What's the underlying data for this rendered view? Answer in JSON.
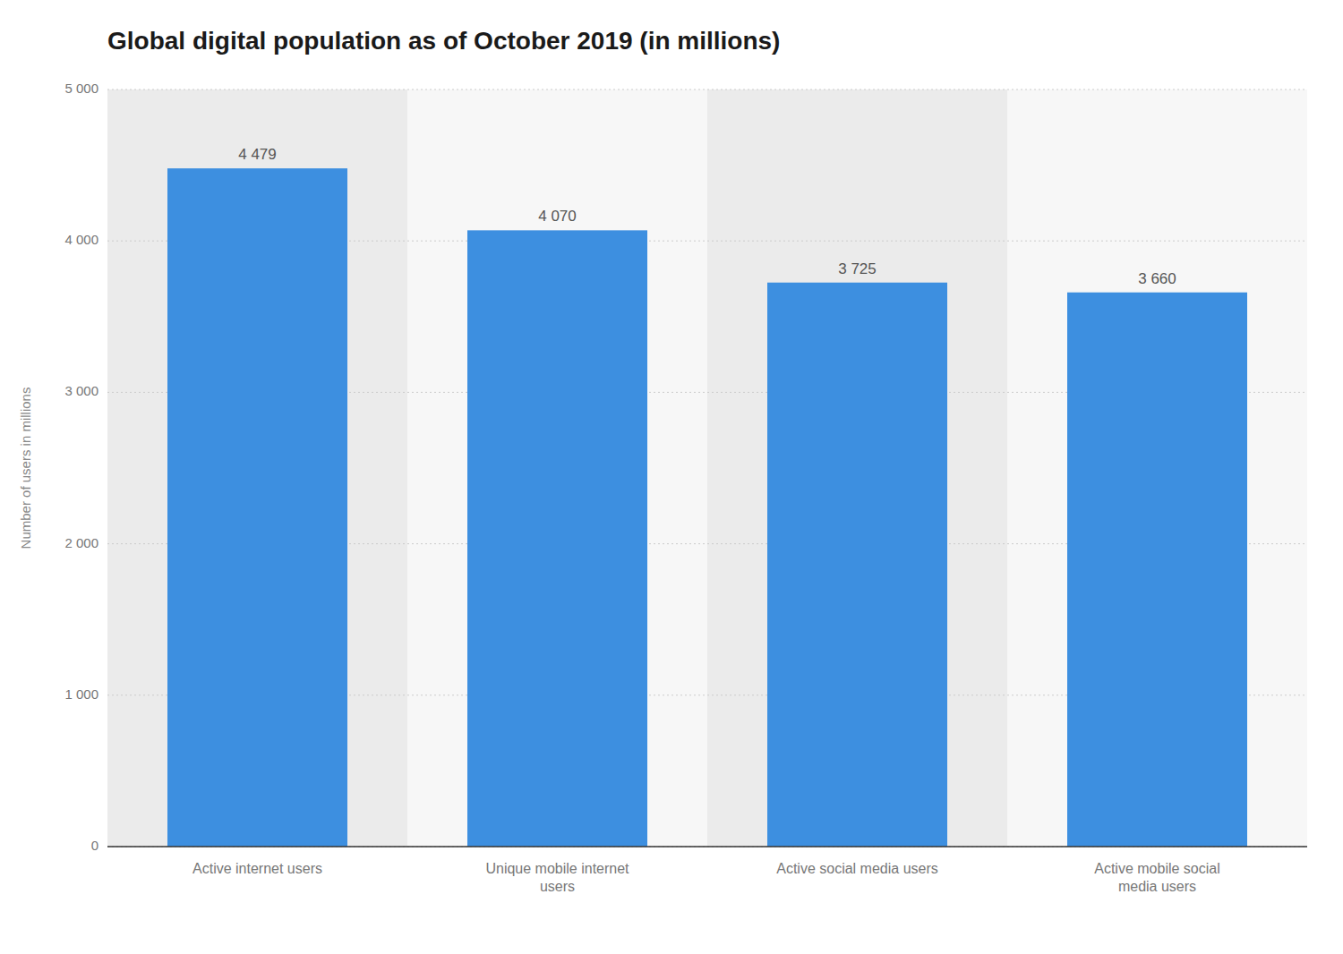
{
  "chart_data": {
    "type": "bar",
    "title": "Global digital population as of October 2019 (in millions)",
    "categories": [
      "Active internet users",
      "Unique mobile internet\nusers",
      "Active social media users",
      "Active mobile social\nmedia users"
    ],
    "values": [
      4479,
      4070,
      3725,
      3660
    ],
    "value_labels": [
      "4 479",
      "4 070",
      "3 725",
      "3 660"
    ],
    "data_labels": true,
    "color": "#3d8fe0",
    "ylabel": "Number of users in millions",
    "ylim": [
      0,
      5000
    ],
    "yticks": [
      0,
      {
        "value": 1000,
        "label": "1 000"
      },
      {
        "value": 2000,
        "label": "2 000"
      },
      {
        "value": 3000,
        "label": "3 000"
      },
      {
        "value": 4000,
        "label": "4 000"
      },
      {
        "value": 5000,
        "label": "5 000"
      }
    ],
    "grid": true
  }
}
